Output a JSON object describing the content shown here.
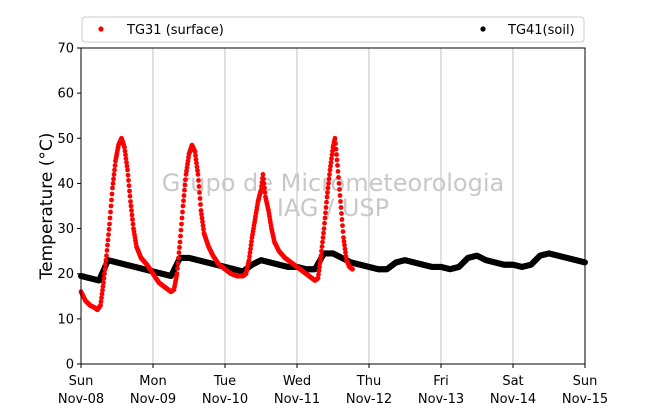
{
  "chart_data": {
    "type": "scatter",
    "ylabel": "Temperature (°C)",
    "ylim": [
      0,
      70
    ],
    "yticks": [
      0,
      10,
      20,
      30,
      40,
      50,
      60,
      70
    ],
    "xlim": [
      "2015-11-08 00:00",
      "2015-11-15 00:00"
    ],
    "xticks": [
      {
        "top": "Sun",
        "bottom": "Nov-08"
      },
      {
        "top": "Mon",
        "bottom": "Nov-09"
      },
      {
        "top": "Tue",
        "bottom": "Nov-10"
      },
      {
        "top": "Wed",
        "bottom": "Nov-11"
      },
      {
        "top": "Thu",
        "bottom": "Nov-12"
      },
      {
        "top": "Fri",
        "bottom": "Nov-13"
      },
      {
        "top": "Sat",
        "bottom": "Nov-14"
      },
      {
        "top": "Sun",
        "bottom": "Nov-15"
      }
    ],
    "vertical_grid": true,
    "legend": {
      "placement": "top"
    },
    "watermark": [
      "Grupo de Micrometeorologia",
      "IAG / USP"
    ],
    "series": [
      {
        "name": "TG31 (surface)",
        "color": "#ff0000",
        "points": [
          [
            "2015-11-08 00:00",
            16
          ],
          [
            "2015-11-08 01:30",
            14
          ],
          [
            "2015-11-08 03:00",
            13
          ],
          [
            "2015-11-08 04:30",
            12.5
          ],
          [
            "2015-11-08 05:30",
            12
          ],
          [
            "2015-11-08 06:30",
            13
          ],
          [
            "2015-11-08 07:30",
            18
          ],
          [
            "2015-11-08 08:30",
            24
          ],
          [
            "2015-11-08 09:30",
            31
          ],
          [
            "2015-11-08 10:30",
            39
          ],
          [
            "2015-11-08 11:30",
            45
          ],
          [
            "2015-11-08 12:30",
            48.5
          ],
          [
            "2015-11-08 13:30",
            50
          ],
          [
            "2015-11-08 14:30",
            48
          ],
          [
            "2015-11-08 15:30",
            43
          ],
          [
            "2015-11-08 16:30",
            36
          ],
          [
            "2015-11-08 17:30",
            30
          ],
          [
            "2015-11-08 18:30",
            26
          ],
          [
            "2015-11-08 20:00",
            23.5
          ],
          [
            "2015-11-08 22:00",
            22
          ],
          [
            "2015-11-09 00:00",
            20
          ],
          [
            "2015-11-09 02:00",
            18
          ],
          [
            "2015-11-09 04:00",
            17
          ],
          [
            "2015-11-09 06:00",
            16
          ],
          [
            "2015-11-09 07:00",
            16.5
          ],
          [
            "2015-11-09 08:00",
            20
          ],
          [
            "2015-11-09 09:00",
            27
          ],
          [
            "2015-11-09 10:00",
            35
          ],
          [
            "2015-11-09 11:00",
            42
          ],
          [
            "2015-11-09 12:00",
            46.5
          ],
          [
            "2015-11-09 13:00",
            48.5
          ],
          [
            "2015-11-09 14:00",
            47
          ],
          [
            "2015-11-09 15:00",
            42
          ],
          [
            "2015-11-09 16:00",
            34
          ],
          [
            "2015-11-09 17:00",
            29
          ],
          [
            "2015-11-09 18:30",
            26
          ],
          [
            "2015-11-09 20:00",
            24
          ],
          [
            "2015-11-09 22:00",
            22
          ],
          [
            "2015-11-10 00:00",
            21
          ],
          [
            "2015-11-10 02:00",
            20
          ],
          [
            "2015-11-10 04:00",
            19.5
          ],
          [
            "2015-11-10 06:00",
            19.5
          ],
          [
            "2015-11-10 07:00",
            20
          ],
          [
            "2015-11-10 08:00",
            23
          ],
          [
            "2015-11-10 09:00",
            28
          ],
          [
            "2015-11-10 10:00",
            32
          ],
          [
            "2015-11-10 11:00",
            36
          ],
          [
            "2015-11-10 12:00",
            38.5
          ],
          [
            "2015-11-10 12:40",
            42
          ],
          [
            "2015-11-10 13:30",
            37
          ],
          [
            "2015-11-10 14:30",
            34
          ],
          [
            "2015-11-10 15:30",
            30
          ],
          [
            "2015-11-10 16:30",
            27
          ],
          [
            "2015-11-10 18:00",
            25
          ],
          [
            "2015-11-10 20:00",
            23.5
          ],
          [
            "2015-11-10 22:00",
            22.5
          ],
          [
            "2015-11-11 00:00",
            21.5
          ],
          [
            "2015-11-11 02:00",
            20.5
          ],
          [
            "2015-11-11 04:00",
            19.5
          ],
          [
            "2015-11-11 06:00",
            18.5
          ],
          [
            "2015-11-11 07:00",
            19
          ],
          [
            "2015-11-11 08:00",
            24
          ],
          [
            "2015-11-11 09:00",
            30
          ],
          [
            "2015-11-11 10:00",
            37
          ],
          [
            "2015-11-11 11:00",
            43
          ],
          [
            "2015-11-11 12:00",
            48
          ],
          [
            "2015-11-11 12:40",
            50
          ],
          [
            "2015-11-11 13:30",
            44
          ],
          [
            "2015-11-11 14:30",
            36
          ],
          [
            "2015-11-11 15:30",
            28
          ],
          [
            "2015-11-11 16:30",
            23
          ],
          [
            "2015-11-11 17:30",
            21.5
          ],
          [
            "2015-11-11 18:30",
            21
          ]
        ]
      },
      {
        "name": "TG41(soil)",
        "color": "#000000",
        "points": [
          [
            "2015-11-08 00:00",
            19.5
          ],
          [
            "2015-11-08 03:00",
            19
          ],
          [
            "2015-11-08 06:00",
            18.5
          ],
          [
            "2015-11-08 09:00",
            23
          ],
          [
            "2015-11-08 12:00",
            22.5
          ],
          [
            "2015-11-08 15:00",
            22
          ],
          [
            "2015-11-08 18:00",
            21.5
          ],
          [
            "2015-11-08 21:00",
            21
          ],
          [
            "2015-11-09 00:00",
            20.5
          ],
          [
            "2015-11-09 03:00",
            20
          ],
          [
            "2015-11-09 06:00",
            19.5
          ],
          [
            "2015-11-09 09:00",
            23.5
          ],
          [
            "2015-11-09 12:00",
            23.5
          ],
          [
            "2015-11-09 15:00",
            23
          ],
          [
            "2015-11-09 18:00",
            22.5
          ],
          [
            "2015-11-09 21:00",
            22
          ],
          [
            "2015-11-10 00:00",
            21.5
          ],
          [
            "2015-11-10 03:00",
            21
          ],
          [
            "2015-11-10 06:00",
            20.5
          ],
          [
            "2015-11-10 09:00",
            22
          ],
          [
            "2015-11-10 12:00",
            23
          ],
          [
            "2015-11-10 15:00",
            22.5
          ],
          [
            "2015-11-10 18:00",
            22
          ],
          [
            "2015-11-10 21:00",
            21.5
          ],
          [
            "2015-11-11 00:00",
            21.5
          ],
          [
            "2015-11-11 03:00",
            21
          ],
          [
            "2015-11-11 06:00",
            21
          ],
          [
            "2015-11-11 09:00",
            24.5
          ],
          [
            "2015-11-11 12:00",
            24.5
          ],
          [
            "2015-11-11 15:00",
            23.5
          ],
          [
            "2015-11-11 18:00",
            22.5
          ],
          [
            "2015-11-11 21:00",
            22
          ],
          [
            "2015-11-12 00:00",
            21.5
          ],
          [
            "2015-11-12 03:00",
            21
          ],
          [
            "2015-11-12 06:00",
            21
          ],
          [
            "2015-11-12 09:00",
            22.5
          ],
          [
            "2015-11-12 12:00",
            23
          ],
          [
            "2015-11-12 15:00",
            22.5
          ],
          [
            "2015-11-12 18:00",
            22
          ],
          [
            "2015-11-12 21:00",
            21.5
          ],
          [
            "2015-11-13 00:00",
            21.5
          ],
          [
            "2015-11-13 03:00",
            21
          ],
          [
            "2015-11-13 06:00",
            21.5
          ],
          [
            "2015-11-13 09:00",
            23.5
          ],
          [
            "2015-11-13 12:00",
            24
          ],
          [
            "2015-11-13 15:00",
            23
          ],
          [
            "2015-11-13 18:00",
            22.5
          ],
          [
            "2015-11-13 21:00",
            22
          ],
          [
            "2015-11-14 00:00",
            22
          ],
          [
            "2015-11-14 03:00",
            21.5
          ],
          [
            "2015-11-14 06:00",
            22
          ],
          [
            "2015-11-14 09:00",
            24
          ],
          [
            "2015-11-14 12:00",
            24.5
          ],
          [
            "2015-11-14 15:00",
            24
          ],
          [
            "2015-11-14 18:00",
            23.5
          ],
          [
            "2015-11-14 21:00",
            23
          ],
          [
            "2015-11-15 00:00",
            22.5
          ]
        ]
      }
    ]
  }
}
